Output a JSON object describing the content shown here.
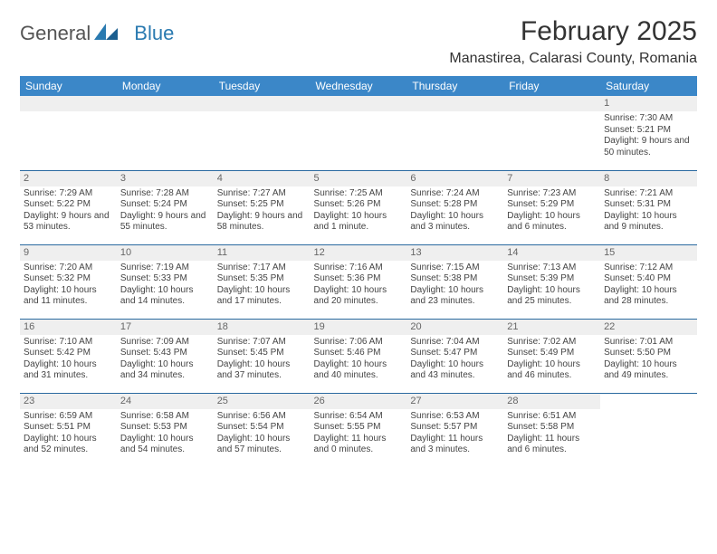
{
  "logo": {
    "text1": "General",
    "text2": "Blue"
  },
  "title": "February 2025",
  "location": "Manastirea, Calarasi County, Romania",
  "colors": {
    "header_bg": "#3b87c8",
    "header_text": "#ffffff",
    "daynum_bg": "#efefef",
    "row_border": "#2a6aa0",
    "logo_blue": "#2a7ab0"
  },
  "day_headers": [
    "Sunday",
    "Monday",
    "Tuesday",
    "Wednesday",
    "Thursday",
    "Friday",
    "Saturday"
  ],
  "weeks": [
    [
      null,
      null,
      null,
      null,
      null,
      null,
      {
        "n": "1",
        "sr": "7:30 AM",
        "ss": "5:21 PM",
        "dl": "9 hours and 50 minutes."
      }
    ],
    [
      {
        "n": "2",
        "sr": "7:29 AM",
        "ss": "5:22 PM",
        "dl": "9 hours and 53 minutes."
      },
      {
        "n": "3",
        "sr": "7:28 AM",
        "ss": "5:24 PM",
        "dl": "9 hours and 55 minutes."
      },
      {
        "n": "4",
        "sr": "7:27 AM",
        "ss": "5:25 PM",
        "dl": "9 hours and 58 minutes."
      },
      {
        "n": "5",
        "sr": "7:25 AM",
        "ss": "5:26 PM",
        "dl": "10 hours and 1 minute."
      },
      {
        "n": "6",
        "sr": "7:24 AM",
        "ss": "5:28 PM",
        "dl": "10 hours and 3 minutes."
      },
      {
        "n": "7",
        "sr": "7:23 AM",
        "ss": "5:29 PM",
        "dl": "10 hours and 6 minutes."
      },
      {
        "n": "8",
        "sr": "7:21 AM",
        "ss": "5:31 PM",
        "dl": "10 hours and 9 minutes."
      }
    ],
    [
      {
        "n": "9",
        "sr": "7:20 AM",
        "ss": "5:32 PM",
        "dl": "10 hours and 11 minutes."
      },
      {
        "n": "10",
        "sr": "7:19 AM",
        "ss": "5:33 PM",
        "dl": "10 hours and 14 minutes."
      },
      {
        "n": "11",
        "sr": "7:17 AM",
        "ss": "5:35 PM",
        "dl": "10 hours and 17 minutes."
      },
      {
        "n": "12",
        "sr": "7:16 AM",
        "ss": "5:36 PM",
        "dl": "10 hours and 20 minutes."
      },
      {
        "n": "13",
        "sr": "7:15 AM",
        "ss": "5:38 PM",
        "dl": "10 hours and 23 minutes."
      },
      {
        "n": "14",
        "sr": "7:13 AM",
        "ss": "5:39 PM",
        "dl": "10 hours and 25 minutes."
      },
      {
        "n": "15",
        "sr": "7:12 AM",
        "ss": "5:40 PM",
        "dl": "10 hours and 28 minutes."
      }
    ],
    [
      {
        "n": "16",
        "sr": "7:10 AM",
        "ss": "5:42 PM",
        "dl": "10 hours and 31 minutes."
      },
      {
        "n": "17",
        "sr": "7:09 AM",
        "ss": "5:43 PM",
        "dl": "10 hours and 34 minutes."
      },
      {
        "n": "18",
        "sr": "7:07 AM",
        "ss": "5:45 PM",
        "dl": "10 hours and 37 minutes."
      },
      {
        "n": "19",
        "sr": "7:06 AM",
        "ss": "5:46 PM",
        "dl": "10 hours and 40 minutes."
      },
      {
        "n": "20",
        "sr": "7:04 AM",
        "ss": "5:47 PM",
        "dl": "10 hours and 43 minutes."
      },
      {
        "n": "21",
        "sr": "7:02 AM",
        "ss": "5:49 PM",
        "dl": "10 hours and 46 minutes."
      },
      {
        "n": "22",
        "sr": "7:01 AM",
        "ss": "5:50 PM",
        "dl": "10 hours and 49 minutes."
      }
    ],
    [
      {
        "n": "23",
        "sr": "6:59 AM",
        "ss": "5:51 PM",
        "dl": "10 hours and 52 minutes."
      },
      {
        "n": "24",
        "sr": "6:58 AM",
        "ss": "5:53 PM",
        "dl": "10 hours and 54 minutes."
      },
      {
        "n": "25",
        "sr": "6:56 AM",
        "ss": "5:54 PM",
        "dl": "10 hours and 57 minutes."
      },
      {
        "n": "26",
        "sr": "6:54 AM",
        "ss": "5:55 PM",
        "dl": "11 hours and 0 minutes."
      },
      {
        "n": "27",
        "sr": "6:53 AM",
        "ss": "5:57 PM",
        "dl": "11 hours and 3 minutes."
      },
      {
        "n": "28",
        "sr": "6:51 AM",
        "ss": "5:58 PM",
        "dl": "11 hours and 6 minutes."
      },
      null
    ]
  ],
  "labels": {
    "sunrise": "Sunrise:",
    "sunset": "Sunset:",
    "daylight": "Daylight:"
  }
}
